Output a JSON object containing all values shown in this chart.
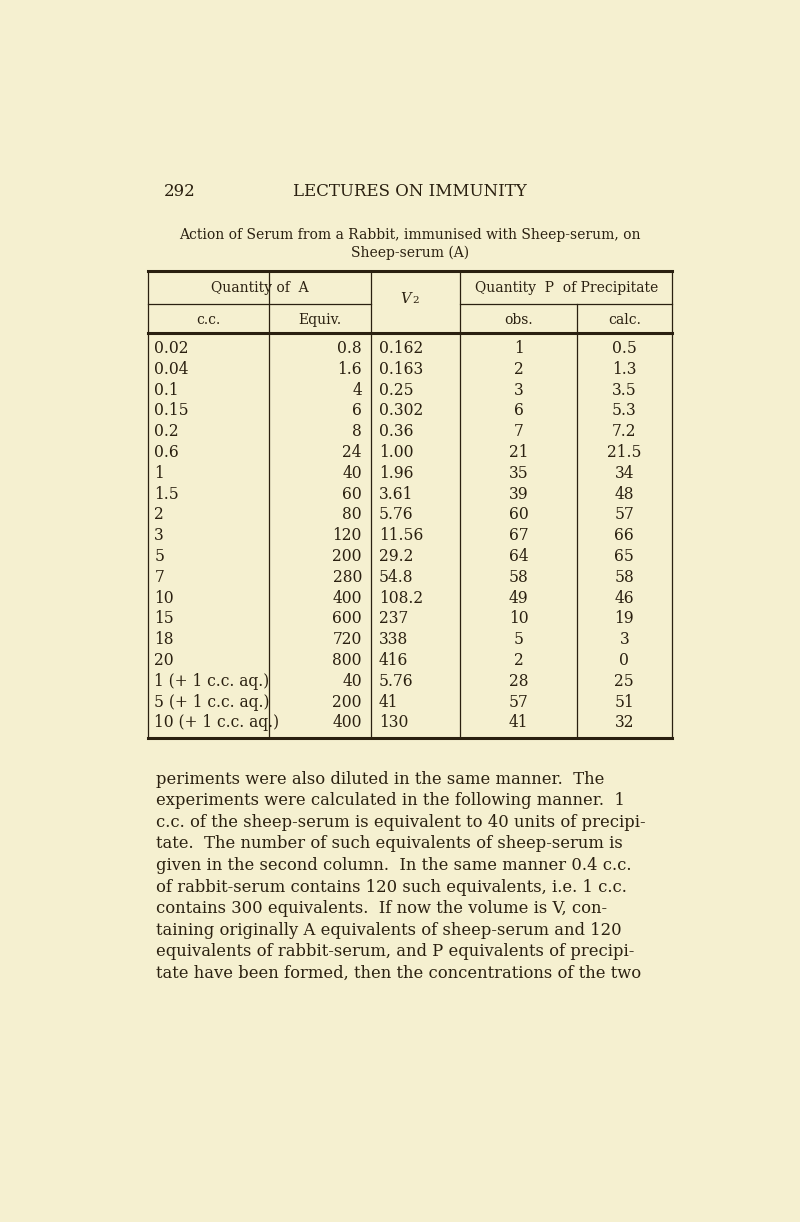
{
  "page_number": "292",
  "page_title": "LECTURES ON IMMUNITY",
  "table_title_line1": "Action of Serum from a Rabbit, immunised with Sheep-serum, on",
  "table_title_line2": "Sheep-serum (A)",
  "col_header_qty_a": "Quantity of A",
  "col_header_cc": "c.c.",
  "col_header_equiv": "Equiv.",
  "col_header_v2": "V2",
  "col_header_qty_p": "Quantity P of Precipitate",
  "col_header_obs": "obs.",
  "col_header_calc": "calc.",
  "rows": [
    [
      "0.02",
      "0.8",
      "0.162",
      "1",
      "0.5"
    ],
    [
      "0.04",
      "1.6",
      "0.163",
      "2",
      "1.3"
    ],
    [
      "0.1",
      "4",
      "0.25",
      "3",
      "3.5"
    ],
    [
      "0.15",
      "6",
      "0.302",
      "6",
      "5.3"
    ],
    [
      "0.2",
      "8",
      "0.36",
      "7",
      "7.2"
    ],
    [
      "0.6",
      "24",
      "1.00",
      "21",
      "21.5"
    ],
    [
      "1",
      "40",
      "1.96",
      "35",
      "34"
    ],
    [
      "1.5",
      "60",
      "3.61",
      "39",
      "48"
    ],
    [
      "2",
      "80",
      "5.76",
      "60",
      "57"
    ],
    [
      "3",
      "120",
      "11.56",
      "67",
      "66"
    ],
    [
      "5",
      "200",
      "29.2",
      "64",
      "65"
    ],
    [
      "7",
      "280",
      "54.8",
      "58",
      "58"
    ],
    [
      "10",
      "400",
      "108.2",
      "49",
      "46"
    ],
    [
      "15",
      "600",
      "237",
      "10",
      "19"
    ],
    [
      "18",
      "720",
      "338",
      "5",
      "3"
    ],
    [
      "20",
      "800",
      "416",
      "2",
      "0"
    ],
    [
      "1 (+ 1 c.c. aq.)",
      "40",
      "5.76",
      "28",
      "25"
    ],
    [
      "5 (+ 1 c.c. aq.)",
      "200",
      "41",
      "57",
      "51"
    ],
    [
      "10 (+ 1 c.c. aq.)",
      "400",
      "130",
      "41",
      "32"
    ]
  ],
  "para_lines": [
    "periments were also diluted in the same manner.  The",
    "experiments were calculated in the following manner.  1",
    "c.c. of the sheep-serum is equivalent to 40 units of precipi-",
    "tate.  The number of such equivalents of sheep-serum is",
    "given in the second column.  In the same manner 0.4 c.c.",
    "of rabbit-serum contains 120 such equivalents, i.e. 1 c.c.",
    "contains 300 equivalents.  If now the volume is V, con-",
    "taining originally A equivalents of sheep-serum and 120",
    "equivalents of rabbit-serum, and P equivalents of precipi-",
    "tate have been formed, then the concentrations of the two"
  ],
  "bg_color": "#f5f0d0",
  "text_color": "#2a2010",
  "font_size_body": 11.5,
  "font_size_header": 10.5,
  "font_size_title": 10.0,
  "font_size_page": 12
}
